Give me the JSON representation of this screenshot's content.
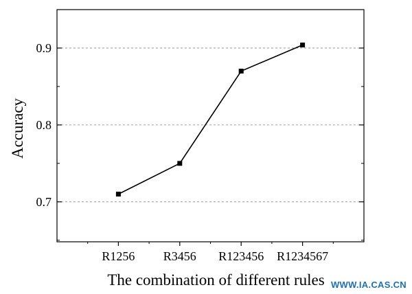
{
  "chart_data": {
    "type": "line",
    "categories": [
      "R1256",
      "R3456",
      "R123456",
      "R1234567"
    ],
    "series": [
      {
        "values": [
          0.71,
          0.75,
          0.87,
          0.904
        ]
      }
    ],
    "xlabel": "The combination of different rules",
    "ylabel": "Accuracy",
    "ylim": [
      0.648,
      0.95
    ],
    "yticks": [
      "0.7",
      "0.8",
      "0.9"
    ],
    "ytick_values": [
      0.7,
      0.8,
      0.9
    ],
    "grid": "horizontal-dashed",
    "colors": {
      "line": "#000000",
      "marker": "#000000",
      "grid": "#888888"
    }
  },
  "watermark": "WWW.IA.CAS.CN"
}
